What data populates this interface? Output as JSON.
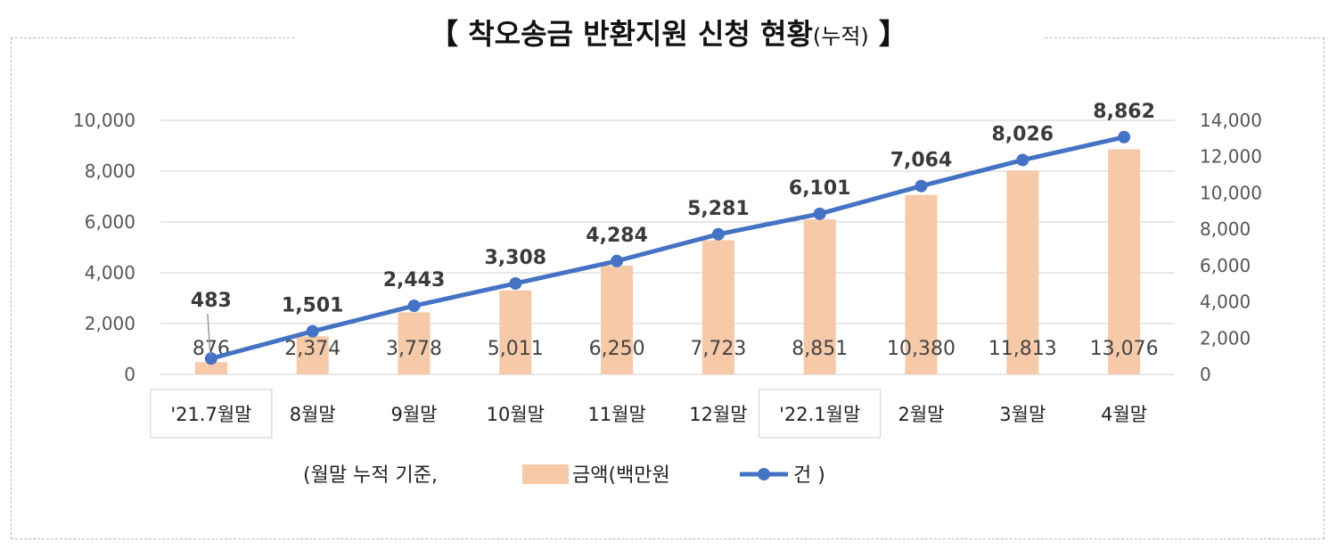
{
  "title": {
    "main": "【 착오송금 반환지원 신청 현황",
    "sub": "(누적)",
    "close": " 】"
  },
  "chart_data": {
    "type": "bar",
    "categories": [
      "'21.7월말",
      "8월말",
      "9월말",
      "10월말",
      "11월말",
      "12월말",
      "'22.1월말",
      "2월말",
      "3월말",
      "4월말"
    ],
    "series": [
      {
        "name": "금액(백만원",
        "type": "bar",
        "axis": "left",
        "values": [
          483,
          1501,
          2443,
          3308,
          4284,
          5281,
          6101,
          7064,
          8026,
          8862
        ],
        "labels": [
          "483",
          "1,501",
          "2,443",
          "3,308",
          "4,284",
          "5,281",
          "6,101",
          "7,064",
          "8,026",
          "8,862"
        ],
        "color": "#f6c9a8"
      },
      {
        "name": "건 )",
        "type": "line",
        "axis": "right",
        "values": [
          876,
          2374,
          3778,
          5011,
          6250,
          7723,
          8851,
          10380,
          11813,
          13076
        ],
        "labels": [
          "876",
          "2,374",
          "3,778",
          "5,011",
          "6,250",
          "7,723",
          "8,851",
          "10,380",
          "11,813",
          "13,076"
        ],
        "color": "#4472c4"
      }
    ],
    "left_axis": {
      "ylim": [
        0,
        10000
      ],
      "ticks": [
        "0",
        "2,000",
        "4,000",
        "6,000",
        "8,000",
        "10,000"
      ]
    },
    "right_axis": {
      "ylim": [
        0,
        14000
      ],
      "ticks": [
        "0",
        "2,000",
        "4,000",
        "6,000",
        "8,000",
        "10,000",
        "12,000",
        "14,000"
      ]
    },
    "boxed_categories": [
      "'21.7월말",
      "'22.1월말"
    ],
    "grid": true,
    "legend": {
      "position": "bottom",
      "prefix": "(월말 누적 기준,",
      "bar": "금액(백만원",
      "line": "건 )"
    }
  }
}
